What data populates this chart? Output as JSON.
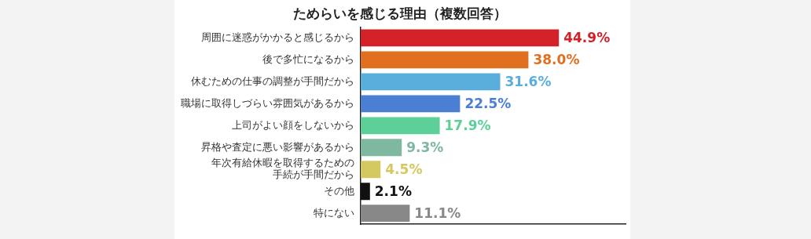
{
  "chart_data": {
    "type": "bar",
    "orientation": "horizontal",
    "title": "ためらいを感じる理由（複数回答）",
    "categories": [
      "周囲に迷惑がかかると感じるから",
      "後で多忙になるから",
      "休むための仕事の調整が手間だから",
      "職場に取得しづらい雰囲気があるから",
      "上司がよい顔をしないから",
      "昇格や査定に悪い影響があるから",
      "年次有給休暇を取得するための手続が手間だから",
      "その他",
      "特にない"
    ],
    "values": [
      44.9,
      38.0,
      31.6,
      22.5,
      17.9,
      9.3,
      4.5,
      2.1,
      11.1
    ],
    "colors": [
      "#d42027",
      "#e07020",
      "#5aaedb",
      "#4a7fd4",
      "#5dcf98",
      "#7fb8a0",
      "#d4c860",
      "#111111",
      "#888888"
    ],
    "value_labels": [
      "44.9%",
      "38.0%",
      "31.6%",
      "22.5%",
      "17.9%",
      "9.3%",
      "4.5%",
      "2.1%",
      "11.1%"
    ],
    "xlim": [
      0,
      60
    ],
    "tick_labels": "y",
    "grid": false,
    "legend": false
  }
}
